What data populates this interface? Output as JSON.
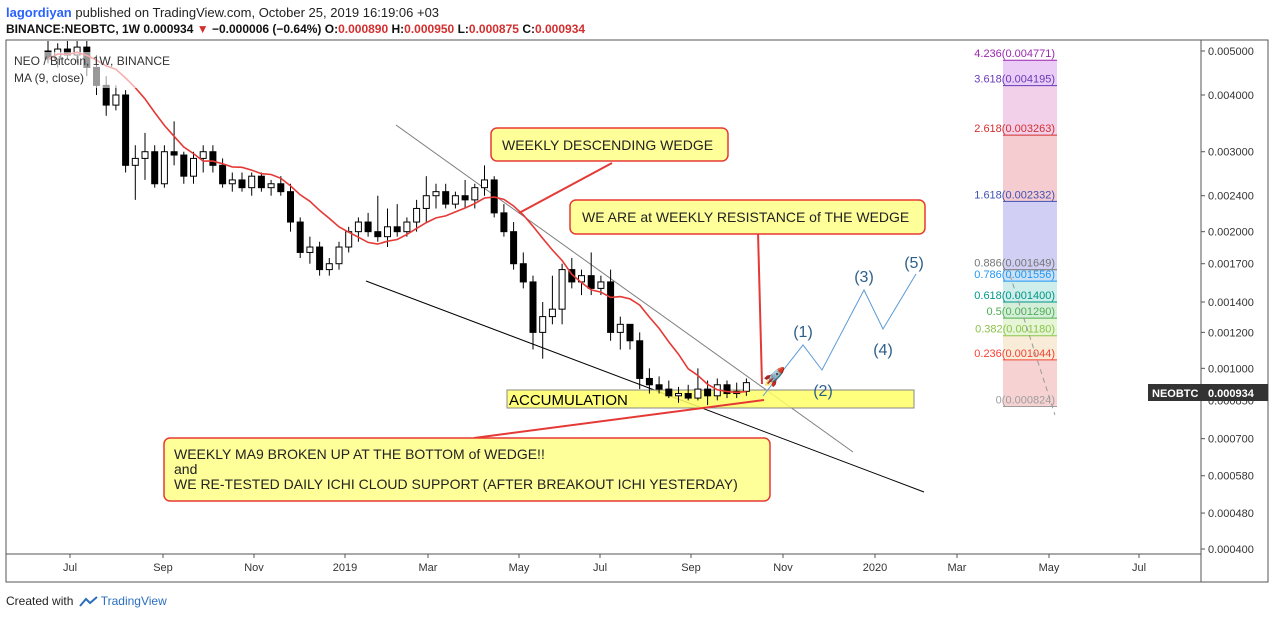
{
  "header": {
    "author": "lagordiyan",
    "published_text": "published on TradingView.com, October 25, 2019 16:19:06 +03",
    "symbol": "BINANCE:NEOBTC, 1W",
    "last": "0.000934",
    "change": "−0.000006 (−0.64%)",
    "o_label": "O:",
    "o": "0.000890",
    "h_label": "H:",
    "h": "0.000950",
    "l_label": "L:",
    "l": "0.000875",
    "c_label": "C:",
    "c": "0.000934"
  },
  "legend": {
    "series": "NEO / Bitcoin, 1W, BINANCE",
    "ma": "MA (9, close)"
  },
  "footer": {
    "created_with": "Created with",
    "brand": "TradingView"
  },
  "colors": {
    "up": "#ffffff",
    "down": "#000000",
    "ma": "#e53935",
    "projection": "#5b9bd5",
    "annotation_fill": "#ffff99",
    "annotation_stroke": "#e53935",
    "price_tag": "#333333"
  },
  "chart_data": {
    "type": "candlestick",
    "scale": "log",
    "ylim": [
      0.00039,
      0.0052
    ],
    "x_ticks": [
      "Jul",
      "Sep",
      "Nov",
      "2019",
      "Mar",
      "May",
      "Jul",
      "Sep",
      "Nov",
      "2020",
      "Mar",
      "May",
      "Jul"
    ],
    "y_ticks": [
      "0.005000",
      "0.004000",
      "0.003000",
      "0.002400",
      "0.002000",
      "0.001700",
      "0.001400",
      "0.001200",
      "0.001000",
      "0.000850",
      "0.000700",
      "0.000580",
      "0.000480",
      "0.000400"
    ],
    "current_price_label": "NEOBTC",
    "current_price": "0.000934",
    "candles": [
      {
        "o": 0.005,
        "h": 0.0055,
        "l": 0.0047,
        "c": 0.0048
      },
      {
        "o": 0.0048,
        "h": 0.0052,
        "l": 0.0046,
        "c": 0.00505
      },
      {
        "o": 0.00505,
        "h": 0.0056,
        "l": 0.0048,
        "c": 0.0049
      },
      {
        "o": 0.0049,
        "h": 0.0054,
        "l": 0.0047,
        "c": 0.0051
      },
      {
        "o": 0.0051,
        "h": 0.0056,
        "l": 0.0044,
        "c": 0.0046
      },
      {
        "o": 0.0046,
        "h": 0.0049,
        "l": 0.004,
        "c": 0.0042
      },
      {
        "o": 0.0042,
        "h": 0.0044,
        "l": 0.0036,
        "c": 0.0038
      },
      {
        "o": 0.0038,
        "h": 0.0042,
        "l": 0.0037,
        "c": 0.004
      },
      {
        "o": 0.004,
        "h": 0.0041,
        "l": 0.0027,
        "c": 0.0028
      },
      {
        "o": 0.0028,
        "h": 0.0031,
        "l": 0.00235,
        "c": 0.0029
      },
      {
        "o": 0.0029,
        "h": 0.0033,
        "l": 0.0026,
        "c": 0.003
      },
      {
        "o": 0.003,
        "h": 0.0031,
        "l": 0.0025,
        "c": 0.00255
      },
      {
        "o": 0.00255,
        "h": 0.0031,
        "l": 0.0025,
        "c": 0.003
      },
      {
        "o": 0.003,
        "h": 0.0035,
        "l": 0.0028,
        "c": 0.00295
      },
      {
        "o": 0.00295,
        "h": 0.003,
        "l": 0.00255,
        "c": 0.00265
      },
      {
        "o": 0.00265,
        "h": 0.003,
        "l": 0.00255,
        "c": 0.0029
      },
      {
        "o": 0.0029,
        "h": 0.0031,
        "l": 0.0027,
        "c": 0.003
      },
      {
        "o": 0.003,
        "h": 0.0031,
        "l": 0.0027,
        "c": 0.0028
      },
      {
        "o": 0.0028,
        "h": 0.0029,
        "l": 0.0025,
        "c": 0.00255
      },
      {
        "o": 0.00255,
        "h": 0.0027,
        "l": 0.00245,
        "c": 0.0026
      },
      {
        "o": 0.0026,
        "h": 0.0027,
        "l": 0.00245,
        "c": 0.0025
      },
      {
        "o": 0.0025,
        "h": 0.0027,
        "l": 0.0024,
        "c": 0.00265
      },
      {
        "o": 0.00265,
        "h": 0.0027,
        "l": 0.00245,
        "c": 0.0025
      },
      {
        "o": 0.0025,
        "h": 0.0026,
        "l": 0.0024,
        "c": 0.00255
      },
      {
        "o": 0.00255,
        "h": 0.00265,
        "l": 0.0024,
        "c": 0.00245
      },
      {
        "o": 0.00245,
        "h": 0.00255,
        "l": 0.002,
        "c": 0.0021
      },
      {
        "o": 0.0021,
        "h": 0.00215,
        "l": 0.00175,
        "c": 0.0018
      },
      {
        "o": 0.0018,
        "h": 0.00195,
        "l": 0.0017,
        "c": 0.00185
      },
      {
        "o": 0.00185,
        "h": 0.0019,
        "l": 0.0016,
        "c": 0.00165
      },
      {
        "o": 0.00165,
        "h": 0.00175,
        "l": 0.0016,
        "c": 0.0017
      },
      {
        "o": 0.0017,
        "h": 0.0019,
        "l": 0.00165,
        "c": 0.00185
      },
      {
        "o": 0.00185,
        "h": 0.00205,
        "l": 0.0018,
        "c": 0.002
      },
      {
        "o": 0.002,
        "h": 0.00215,
        "l": 0.0019,
        "c": 0.0021
      },
      {
        "o": 0.0021,
        "h": 0.0022,
        "l": 0.00195,
        "c": 0.002
      },
      {
        "o": 0.002,
        "h": 0.0024,
        "l": 0.0019,
        "c": 0.00195
      },
      {
        "o": 0.00195,
        "h": 0.00225,
        "l": 0.00185,
        "c": 0.00205
      },
      {
        "o": 0.00205,
        "h": 0.0023,
        "l": 0.00195,
        "c": 0.002
      },
      {
        "o": 0.002,
        "h": 0.00215,
        "l": 0.00195,
        "c": 0.0021
      },
      {
        "o": 0.0021,
        "h": 0.00235,
        "l": 0.002,
        "c": 0.00225
      },
      {
        "o": 0.00225,
        "h": 0.00265,
        "l": 0.0021,
        "c": 0.0024
      },
      {
        "o": 0.0024,
        "h": 0.00255,
        "l": 0.00225,
        "c": 0.00245
      },
      {
        "o": 0.00245,
        "h": 0.00255,
        "l": 0.00225,
        "c": 0.0023
      },
      {
        "o": 0.0023,
        "h": 0.00245,
        "l": 0.00225,
        "c": 0.0024
      },
      {
        "o": 0.0024,
        "h": 0.0026,
        "l": 0.00225,
        "c": 0.00235
      },
      {
        "o": 0.00235,
        "h": 0.00255,
        "l": 0.00225,
        "c": 0.0025
      },
      {
        "o": 0.0025,
        "h": 0.0028,
        "l": 0.0024,
        "c": 0.0026
      },
      {
        "o": 0.0026,
        "h": 0.00265,
        "l": 0.00215,
        "c": 0.0022
      },
      {
        "o": 0.0022,
        "h": 0.0023,
        "l": 0.00195,
        "c": 0.002
      },
      {
        "o": 0.002,
        "h": 0.0021,
        "l": 0.00165,
        "c": 0.0017
      },
      {
        "o": 0.0017,
        "h": 0.0018,
        "l": 0.0015,
        "c": 0.00155
      },
      {
        "o": 0.00155,
        "h": 0.0016,
        "l": 0.0011,
        "c": 0.0012
      },
      {
        "o": 0.0012,
        "h": 0.0014,
        "l": 0.00105,
        "c": 0.0013
      },
      {
        "o": 0.0013,
        "h": 0.0016,
        "l": 0.00125,
        "c": 0.00135
      },
      {
        "o": 0.00135,
        "h": 0.0017,
        "l": 0.00125,
        "c": 0.00165
      },
      {
        "o": 0.00165,
        "h": 0.00175,
        "l": 0.0015,
        "c": 0.00155
      },
      {
        "o": 0.00155,
        "h": 0.00165,
        "l": 0.00145,
        "c": 0.0016
      },
      {
        "o": 0.0016,
        "h": 0.0018,
        "l": 0.00145,
        "c": 0.0015
      },
      {
        "o": 0.0015,
        "h": 0.0016,
        "l": 0.00145,
        "c": 0.00155
      },
      {
        "o": 0.00155,
        "h": 0.00165,
        "l": 0.00115,
        "c": 0.0012
      },
      {
        "o": 0.0012,
        "h": 0.0013,
        "l": 0.0011,
        "c": 0.00125
      },
      {
        "o": 0.00125,
        "h": 0.00125,
        "l": 0.0011,
        "c": 0.00115
      },
      {
        "o": 0.00115,
        "h": 0.0012,
        "l": 0.0009,
        "c": 0.00095
      },
      {
        "o": 0.00095,
        "h": 0.001,
        "l": 0.00088,
        "c": 0.00092
      },
      {
        "o": 0.00092,
        "h": 0.00096,
        "l": 0.00088,
        "c": 0.0009
      },
      {
        "o": 0.0009,
        "h": 0.00094,
        "l": 0.00086,
        "c": 0.00087
      },
      {
        "o": 0.00087,
        "h": 0.00091,
        "l": 0.00084,
        "c": 0.00088
      },
      {
        "o": 0.00088,
        "h": 0.00092,
        "l": 0.00085,
        "c": 0.00086
      },
      {
        "o": 0.00086,
        "h": 0.001,
        "l": 0.00085,
        "c": 0.0009
      },
      {
        "o": 0.0009,
        "h": 0.00094,
        "l": 0.00083,
        "c": 0.00087
      },
      {
        "o": 0.00087,
        "h": 0.00095,
        "l": 0.00085,
        "c": 0.00092
      },
      {
        "o": 0.00092,
        "h": 0.00094,
        "l": 0.00086,
        "c": 0.00088
      },
      {
        "o": 0.00088,
        "h": 0.00093,
        "l": 0.00086,
        "c": 0.00089
      },
      {
        "o": 0.00089,
        "h": 0.00095,
        "l": 0.00087,
        "c": 0.00093
      }
    ],
    "fib_levels": [
      {
        "label": "4.236(0.004771)",
        "value": 0.004771,
        "color": "#9c27b0"
      },
      {
        "label": "3.618(0.004195)",
        "value": 0.004195,
        "color": "#673ab7"
      },
      {
        "label": "2.618(0.003263)",
        "value": 0.003263,
        "color": "#d32f2f"
      },
      {
        "label": "1.618(0.002332)",
        "value": 0.002332,
        "color": "#3f51b5"
      },
      {
        "label": "0.886(0.001649)",
        "value": 0.001649,
        "color": "#757575"
      },
      {
        "label": "0.786(0.001556)",
        "value": 0.001556,
        "color": "#2196f3"
      },
      {
        "label": "0.618(0.001400)",
        "value": 0.0014,
        "color": "#009688"
      },
      {
        "label": "0.5(0.001290)",
        "value": 0.00129,
        "color": "#4caf50"
      },
      {
        "label": "0.382(0.001180)",
        "value": 0.00118,
        "color": "#8bc34a"
      },
      {
        "label": "0.236(0.001044)",
        "value": 0.001044,
        "color": "#f44336"
      },
      {
        "label": "0(0.000824)",
        "value": 0.000824,
        "color": "#9e9e9e"
      }
    ],
    "wave_labels": [
      "(1)",
      "(2)",
      "(3)",
      "(4)",
      "(5)"
    ],
    "annotations": {
      "wedge": "WEEKLY DESCENDING WEDGE",
      "resistance": "WE ARE at WEEKLY RESISTANCE of THE WEDGE",
      "accumulation": "ACCUMULATION",
      "ma_line1": "WEEKLY MA9 BROKEN UP AT THE BOTTOM of WEDGE!!",
      "ma_line2": "and",
      "ma_line3": "WE RE-TESTED DAILY ICHI CLOUD SUPPORT (AFTER BREAKOUT ICHI YESTERDAY)"
    }
  }
}
